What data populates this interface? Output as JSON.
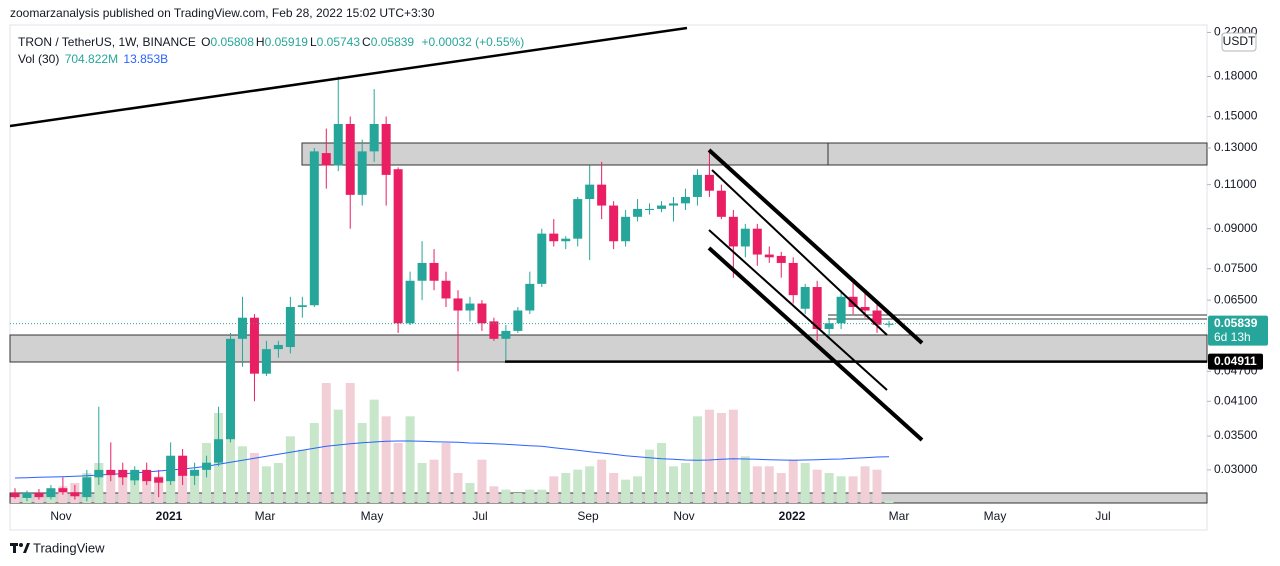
{
  "header": {
    "publisher": "zoomarzanalysis published on TradingView.com, Feb 28, 2022 15:02 UTC+3:30"
  },
  "chart_data": {
    "type": "candlestick",
    "title": "TRON / TetherUS, 1W, BINANCE",
    "ohlc_legend": [
      {
        "label": "O",
        "value": "0.05808"
      },
      {
        "label": "H",
        "value": "0.05919"
      },
      {
        "label": "L",
        "value": "0.05743"
      },
      {
        "label": "C",
        "value": "0.05839"
      }
    ],
    "change": "+0.00032 (+0.55%)",
    "volume_legend": {
      "label": "Vol (30)",
      "volume": "704.822M",
      "ma": "13.853B"
    },
    "currency": "USDT",
    "log_scale": true,
    "ylim": [
      0.0258,
      0.2276
    ],
    "yticks": [
      {
        "value": 0.22,
        "label": "0.22000"
      },
      {
        "value": 0.18,
        "label": "0.18000"
      },
      {
        "value": 0.15,
        "label": "0.15000"
      },
      {
        "value": 0.13,
        "label": "0.13000"
      },
      {
        "value": 0.11,
        "label": "0.11000"
      },
      {
        "value": 0.09,
        "label": "0.09000"
      },
      {
        "value": 0.075,
        "label": "0.07500"
      },
      {
        "value": 0.065,
        "label": "0.06500"
      },
      {
        "value": 0.047,
        "label": "0.04700"
      },
      {
        "value": 0.041,
        "label": "0.04100"
      },
      {
        "value": 0.035,
        "label": "0.03500"
      },
      {
        "value": 0.03,
        "label": "0.03000"
      }
    ],
    "x_labels": [
      "Nov",
      "2021",
      "Mar",
      "May",
      "Jul",
      "Sep",
      "Nov",
      "2022",
      "Mar",
      "May",
      "Jul"
    ],
    "up_color": "#26a69a",
    "down_color": "#e91e63",
    "up_volume_color": "#c8e6c9",
    "down_volume_color": "#f2cfd6",
    "ma_color": "#2962ff",
    "candles": [
      [
        0.027,
        0.0276,
        0.0263,
        0.0265
      ],
      [
        0.0264,
        0.0273,
        0.026,
        0.027
      ],
      [
        0.027,
        0.0275,
        0.0262,
        0.0265
      ],
      [
        0.0265,
        0.028,
        0.0262,
        0.0276
      ],
      [
        0.0276,
        0.029,
        0.0268,
        0.0271
      ],
      [
        0.0271,
        0.028,
        0.0262,
        0.0266
      ],
      [
        0.0265,
        0.03,
        0.026,
        0.029
      ],
      [
        0.029,
        0.04,
        0.028,
        0.03
      ],
      [
        0.03,
        0.034,
        0.0285,
        0.0293
      ],
      [
        0.03,
        0.031,
        0.028,
        0.029
      ],
      [
        0.0286,
        0.0305,
        0.028,
        0.03
      ],
      [
        0.03,
        0.031,
        0.028,
        0.0285
      ],
      [
        0.029,
        0.03,
        0.0265,
        0.0283
      ],
      [
        0.0285,
        0.034,
        0.028,
        0.032
      ],
      [
        0.032,
        0.033,
        0.028,
        0.0292
      ],
      [
        0.0292,
        0.031,
        0.028,
        0.03
      ],
      [
        0.03,
        0.032,
        0.029,
        0.031
      ],
      [
        0.031,
        0.04,
        0.0305,
        0.0345
      ],
      [
        0.0345,
        0.056,
        0.034,
        0.0545
      ],
      [
        0.0545,
        0.066,
        0.048,
        0.06
      ],
      [
        0.06,
        0.061,
        0.041,
        0.0465
      ],
      [
        0.0465,
        0.054,
        0.046,
        0.052
      ],
      [
        0.052,
        0.054,
        0.05,
        0.053
      ],
      [
        0.0525,
        0.066,
        0.051,
        0.063
      ],
      [
        0.063,
        0.066,
        0.06,
        0.0635
      ],
      [
        0.0635,
        0.13,
        0.063,
        0.128
      ],
      [
        0.127,
        0.142,
        0.108,
        0.12
      ],
      [
        0.12,
        0.18,
        0.117,
        0.145
      ],
      [
        0.145,
        0.15,
        0.09,
        0.105
      ],
      [
        0.105,
        0.135,
        0.1,
        0.128
      ],
      [
        0.128,
        0.17,
        0.122,
        0.145
      ],
      [
        0.145,
        0.15,
        0.1,
        0.115
      ],
      [
        0.118,
        0.119,
        0.056,
        0.0585
      ],
      [
        0.0585,
        0.074,
        0.058,
        0.071
      ],
      [
        0.071,
        0.085,
        0.065,
        0.077
      ],
      [
        0.077,
        0.082,
        0.068,
        0.071
      ],
      [
        0.071,
        0.074,
        0.063,
        0.0655
      ],
      [
        0.0655,
        0.068,
        0.047,
        0.062
      ],
      [
        0.062,
        0.066,
        0.059,
        0.064
      ],
      [
        0.064,
        0.065,
        0.0565,
        0.0585
      ],
      [
        0.059,
        0.06,
        0.054,
        0.0545
      ],
      [
        0.0545,
        0.058,
        0.0495,
        0.0565
      ],
      [
        0.0565,
        0.063,
        0.056,
        0.062
      ],
      [
        0.062,
        0.074,
        0.061,
        0.07
      ],
      [
        0.07,
        0.09,
        0.069,
        0.088
      ],
      [
        0.088,
        0.094,
        0.083,
        0.085
      ],
      [
        0.085,
        0.087,
        0.082,
        0.086
      ],
      [
        0.086,
        0.104,
        0.083,
        0.103
      ],
      [
        0.103,
        0.12,
        0.078,
        0.11
      ],
      [
        0.11,
        0.122,
        0.094,
        0.1
      ],
      [
        0.1,
        0.102,
        0.082,
        0.085
      ],
      [
        0.085,
        0.098,
        0.083,
        0.095
      ],
      [
        0.095,
        0.103,
        0.093,
        0.0985
      ],
      [
        0.098,
        0.101,
        0.096,
        0.0985
      ],
      [
        0.0985,
        0.102,
        0.097,
        0.1
      ],
      [
        0.1,
        0.104,
        0.093,
        0.101
      ],
      [
        0.101,
        0.108,
        0.098,
        0.104
      ],
      [
        0.104,
        0.118,
        0.1,
        0.115
      ],
      [
        0.115,
        0.128,
        0.104,
        0.107
      ],
      [
        0.107,
        0.11,
        0.094,
        0.095
      ],
      [
        0.095,
        0.098,
        0.072,
        0.083
      ],
      [
        0.083,
        0.092,
        0.079,
        0.09
      ],
      [
        0.09,
        0.092,
        0.076,
        0.08
      ],
      [
        0.08,
        0.083,
        0.077,
        0.079
      ],
      [
        0.0795,
        0.081,
        0.072,
        0.077
      ],
      [
        0.077,
        0.079,
        0.064,
        0.0665
      ],
      [
        0.0625,
        0.07,
        0.061,
        0.069
      ],
      [
        0.069,
        0.071,
        0.054,
        0.057
      ],
      [
        0.057,
        0.06,
        0.055,
        0.0585
      ],
      [
        0.0585,
        0.068,
        0.057,
        0.066
      ],
      [
        0.066,
        0.071,
        0.061,
        0.063
      ],
      [
        0.063,
        0.067,
        0.06,
        0.062
      ],
      [
        0.062,
        0.064,
        0.056,
        0.0581
      ],
      [
        0.05808,
        0.05919,
        0.05743,
        0.05839
      ]
    ],
    "volumes": [
      3,
      3,
      2,
      4,
      5,
      6,
      9,
      12,
      9,
      8,
      7,
      9,
      8,
      11,
      9,
      10,
      18,
      27,
      22,
      17,
      15,
      11,
      12,
      20,
      16,
      24,
      36,
      28,
      36,
      24,
      31,
      26,
      18,
      26,
      12,
      13,
      18,
      9,
      6,
      13,
      5,
      4,
      3,
      4,
      4,
      8,
      9,
      10,
      11,
      13,
      9,
      7,
      8,
      16,
      18,
      11,
      12,
      26,
      28,
      27,
      28,
      14,
      11,
      11,
      9,
      13,
      12,
      10,
      9,
      8,
      8,
      11,
      10,
      0.704822
    ],
    "volume_ma": [
      7.5,
      7.6,
      7.7,
      7.8,
      7.9,
      8,
      8.2,
      8.4,
      8.6,
      8.8,
      9,
      9.3,
      9.6,
      9.9,
      10.2,
      10.6,
      11,
      11.6,
      12.2,
      12.8,
      13.4,
      14,
      14.6,
      15.2,
      15.8,
      16.4,
      17,
      17.4,
      17.8,
      18.1,
      18.3,
      18.5,
      18.6,
      18.6,
      18.5,
      18.4,
      18.3,
      18.2,
      18,
      17.9,
      17.8,
      17.6,
      17.4,
      17.2,
      17,
      16.6,
      16.2,
      15.8,
      15.4,
      15,
      14.6,
      14.2,
      13.9,
      13.6,
      13.3,
      13.1,
      12.9,
      12.8,
      12.9,
      13.1,
      13.3,
      13.2,
      13.1,
      13,
      12.9,
      12.8,
      12.9,
      13,
      13.1,
      13.2,
      13.4,
      13.6,
      13.8,
      13.853
    ],
    "last_price": {
      "value": 0.05839,
      "label": "0.05839",
      "countdown": "6d 13h"
    },
    "price_line": {
      "value": 0.04911,
      "label": "0.04911"
    }
  },
  "footer": {
    "brand": "TradingView"
  }
}
